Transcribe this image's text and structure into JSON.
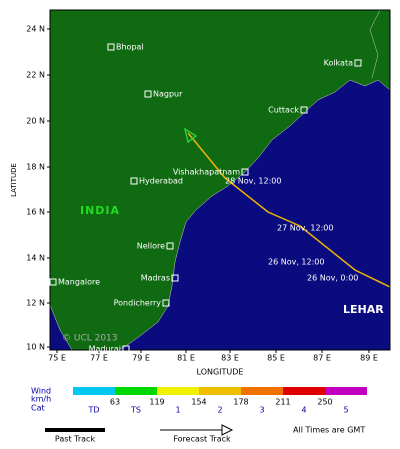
{
  "map": {
    "x_label": "LONGITUDE",
    "y_label": "LATITUDE",
    "x_ticks": [
      "75 E",
      "77 E",
      "79 E",
      "81 E",
      "83 E",
      "85 E",
      "87 E",
      "89 E"
    ],
    "y_ticks": [
      "24 N",
      "22 N",
      "20 N",
      "18 N",
      "16 N",
      "14 N",
      "12 N",
      "10 N"
    ],
    "region_label": "INDIA",
    "storm_name": "LEHAR",
    "copyright": "© UCL 2013",
    "cities": [
      "Bhopal",
      "Kolkata",
      "Nagpur",
      "Cuttack",
      "Vishakhapatnam",
      "Hyderabad",
      "Nellore",
      "Madras",
      "Mangalore",
      "Pondicherry",
      "Madurai"
    ],
    "track_labels": [
      "28 Nov, 12:00",
      "27 Nov, 12:00",
      "26 Nov, 12:00",
      "26 Nov, 0:00"
    ]
  },
  "legend": {
    "wind_label": "Wind",
    "unit_label": "km/h",
    "cat_label": "Cat",
    "thresholds": [
      63,
      119,
      154,
      178,
      211,
      250
    ],
    "categories": [
      "TD",
      "TS",
      "1",
      "2",
      "3",
      "4",
      "5"
    ]
  },
  "key": {
    "past": "Past Track",
    "forecast": "Forecast Track",
    "note": "All Times are GMT"
  }
}
